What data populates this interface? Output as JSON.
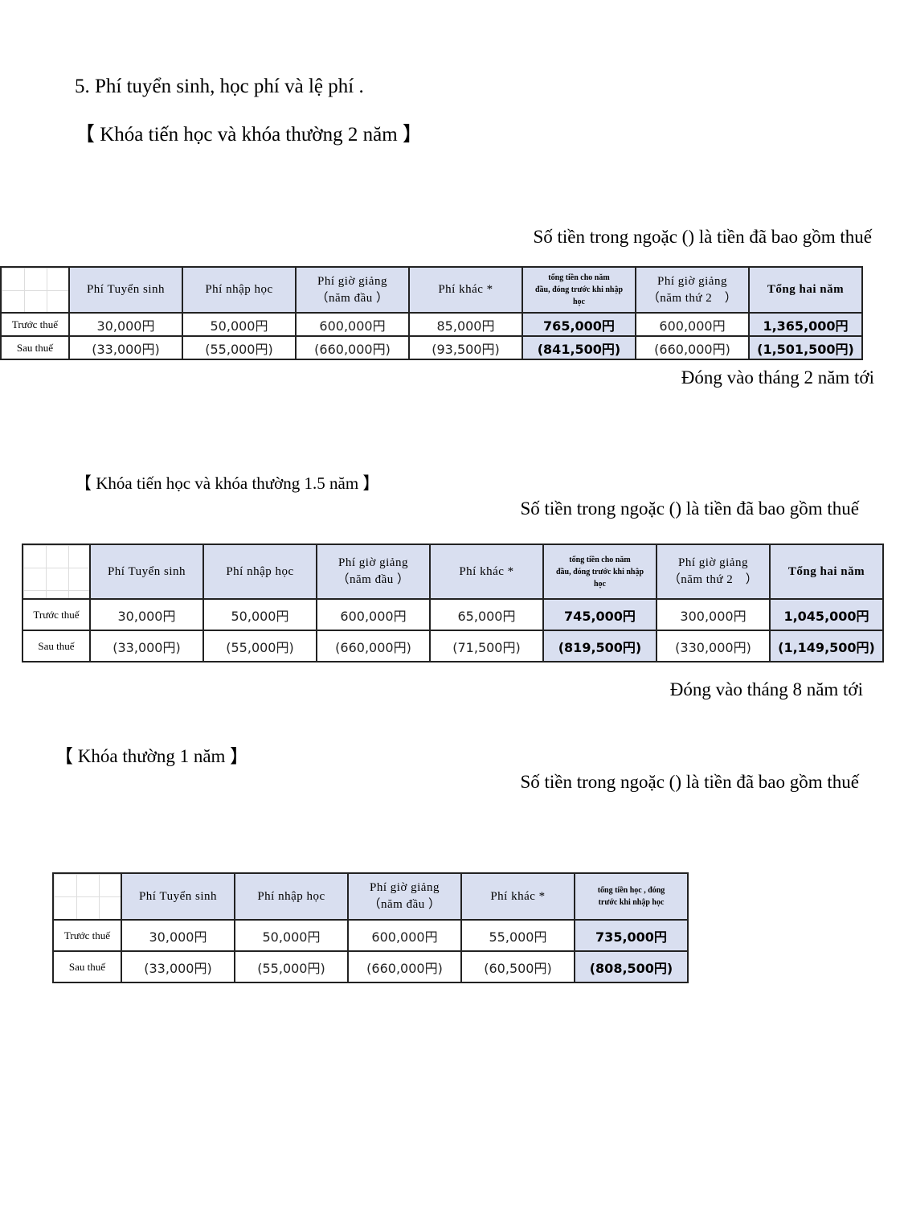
{
  "section_title": "5.  Phí  tuyển sinh, học phí và lệ phí .",
  "tables": [
    {
      "heading": "【 Khóa tiến học và khóa thường 2 năm 】",
      "note": "Số tiền trong ngoặc () là tiền đã  bao gồm thuế",
      "payment": "Đóng vào tháng 2 năm tới",
      "headers": [
        "Phí Tuyển sinh",
        "Phí nhập học",
        "Phí giờ giảng\n（năm đầu ）",
        "Phí khác *",
        "tổng tiền cho năm\nđầu, đóng trước khi nhập\nhọc",
        "Phí giờ giảng\n（năm thứ 2　）",
        "Tổng hai năm"
      ],
      "rows": [
        {
          "label": "Trước thuế",
          "values": [
            "30,000円",
            "50,000円",
            "600,000円",
            "85,000円",
            "765,000円",
            "600,000円",
            "1,365,000円"
          ]
        },
        {
          "label": "Sau thuế",
          "values": [
            "(33,000円)",
            "(55,000円)",
            "(660,000円)",
            "(93,500円)",
            "(841,500円)",
            "(660,000円)",
            "(1,501,500円)"
          ]
        }
      ]
    },
    {
      "heading": "【 Khóa tiến học và khóa thường 1.5 năm 】",
      "note": "Số tiền trong ngoặc () là tiền đã  bao gồm thuế",
      "payment": "Đóng vào tháng 8 năm tới",
      "headers": [
        "Phí Tuyển sinh",
        "Phí nhập học",
        "Phí giờ giảng\n（năm đầu ）",
        "Phí khác *",
        "tổng tiền cho năm\nđầu, đóng trước khi nhập\nhọc",
        "Phí giờ giảng\n（năm thứ 2　）",
        "Tổng hai năm"
      ],
      "rows": [
        {
          "label": "Trước thuế",
          "values": [
            "30,000円",
            "50,000円",
            "600,000円",
            "65,000円",
            "745,000円",
            "300,000円",
            "1,045,000円"
          ]
        },
        {
          "label": "Sau thuế",
          "values": [
            "(33,000円)",
            "(55,000円)",
            "(660,000円)",
            "(71,500円)",
            "(819,500円)",
            "(330,000円)",
            "(1,149,500円)"
          ]
        }
      ]
    },
    {
      "heading": "【 Khóa thường 1 năm 】",
      "note": "Số tiền trong ngoặc () là tiền đã  bao gồm thuế",
      "payment": "",
      "headers": [
        "Phí Tuyển sinh",
        "Phí nhập học",
        "Phí giờ giảng\n（năm đầu ）",
        "Phí khác *",
        "tổng tiền học  , đóng\ntrước khi nhập học"
      ],
      "rows": [
        {
          "label": "Trước thuế",
          "values": [
            "30,000円",
            "50,000円",
            "600,000円",
            "55,000円",
            "735,000円"
          ]
        },
        {
          "label": "Sau thuế",
          "values": [
            "(33,000円)",
            "(55,000円)",
            "(660,000円)",
            "(60,500円)",
            "(808,500円)"
          ]
        }
      ]
    }
  ],
  "colors": {
    "header_bg": "#d9dff0",
    "border": "#222222"
  }
}
